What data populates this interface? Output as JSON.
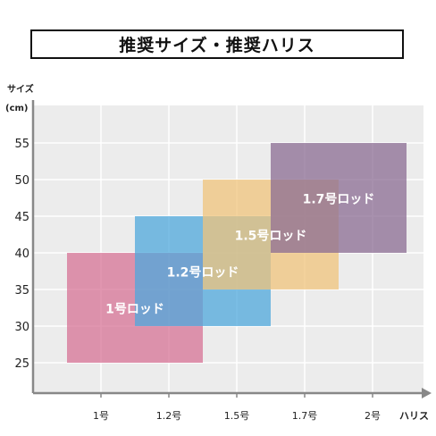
{
  "chart_data": {
    "type": "range-bar",
    "title": "推奨サイズ・推奨ハリス",
    "ylabel_line1": "サイズ",
    "ylabel_line2": "(cm)",
    "xlabel": "ハリス",
    "categories": [
      "1号",
      "1.2号",
      "1.5号",
      "1.7号",
      "2号"
    ],
    "y_ticks": [
      25,
      30,
      35,
      40,
      45,
      50,
      55
    ],
    "ylim": [
      20,
      60
    ],
    "grid": true,
    "series": [
      {
        "name": "1号ロッド",
        "x_range": [
          0.5,
          2.5
        ],
        "y_range": [
          25,
          40
        ],
        "color": "#d77396"
      },
      {
        "name": "1.2号ロッド",
        "x_range": [
          1.5,
          3.5
        ],
        "y_range": [
          30,
          45
        ],
        "color": "#4fa8dc"
      },
      {
        "name": "1.5号ロッド",
        "x_range": [
          2.5,
          4.5
        ],
        "y_range": [
          35,
          50
        ],
        "color": "#f0c47c"
      },
      {
        "name": "1.7号ロッド",
        "x_range": [
          3.5,
          5.5
        ],
        "y_range": [
          40,
          55
        ],
        "color": "#8b6c93"
      }
    ]
  }
}
